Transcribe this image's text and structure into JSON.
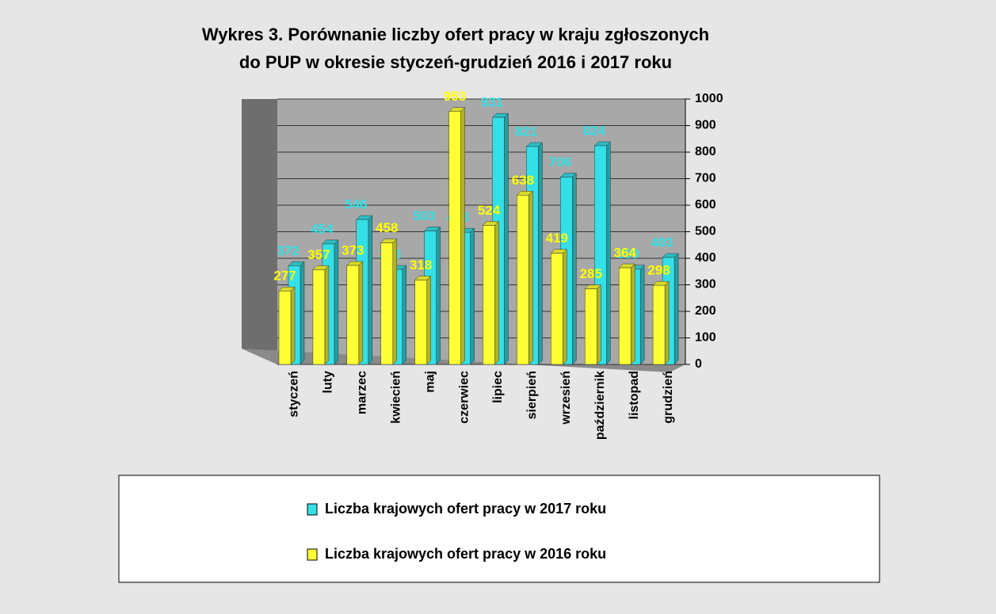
{
  "chart_data": {
    "type": "bar3d",
    "title": [
      "Wykres 3.  Porównanie liczby ofert pracy w kraju zgłoszonych",
      "do PUP w okresie styczeń-grudzień 2016 i 2017 roku"
    ],
    "categories": [
      "styczeń",
      "luty",
      "marzec",
      "kwiecień",
      "maj",
      "czerwiec",
      "lipiec",
      "sierpień",
      "wrzesień",
      "październik",
      "listopad",
      "grudzień"
    ],
    "series": [
      {
        "name": "Liczba krajowych ofert pracy w 2017 roku",
        "color": "#33e0e8",
        "label_color": "#33e0e8",
        "values": [
          372,
          454,
          546,
          358,
          503,
          498,
          931,
          821,
          706,
          824,
          359,
          403
        ]
      },
      {
        "name": "Liczba krajowych ofert pracy w 2016 roku",
        "color": "#ffff33",
        "label_color": "#ffff00",
        "values": [
          277,
          357,
          373,
          458,
          318,
          953,
          524,
          638,
          419,
          285,
          364,
          298
        ]
      }
    ],
    "ylim": [
      0,
      1000
    ],
    "yticks": [
      0,
      100,
      200,
      300,
      400,
      500,
      600,
      700,
      800,
      900,
      1000
    ],
    "grid": true
  }
}
